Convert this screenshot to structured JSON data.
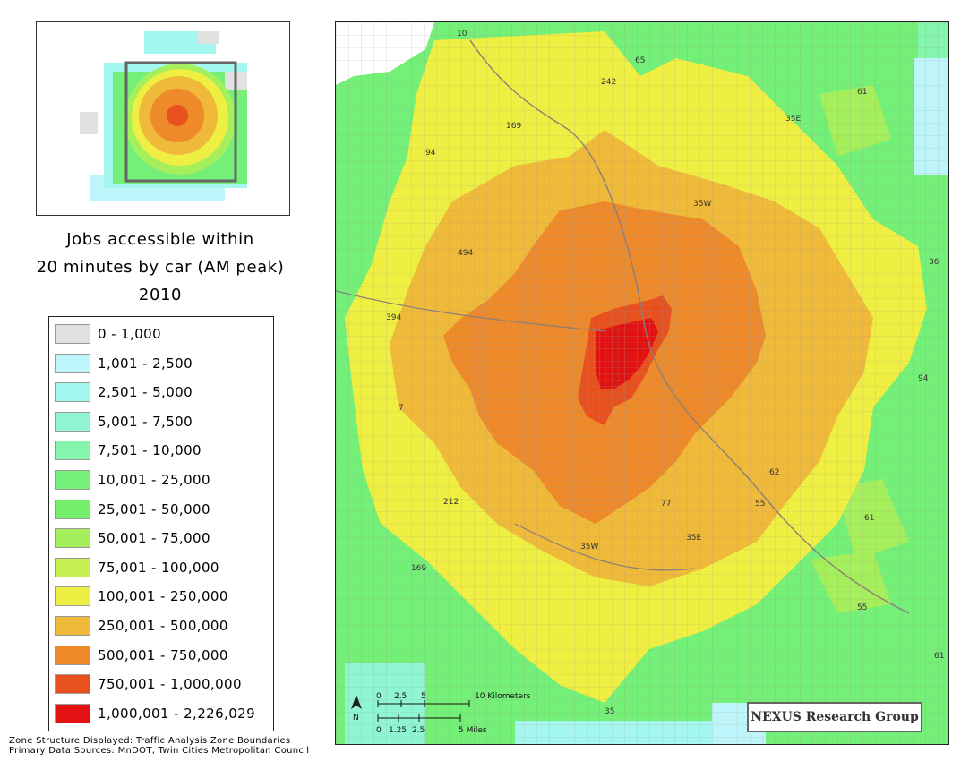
{
  "title": {
    "line1": "Jobs accessible within",
    "line2": "20 minutes by car (AM peak)",
    "line3": "2010"
  },
  "legend": [
    {
      "label": "0 - 1,000",
      "color": "#e1e1e1"
    },
    {
      "label": "1,001 - 2,500",
      "color": "#bef5fa"
    },
    {
      "label": "2,501 - 5,000",
      "color": "#a3f7ef"
    },
    {
      "label": "5,001 - 7,500",
      "color": "#8ff5d2"
    },
    {
      "label": "7,501 - 10,000",
      "color": "#85f5ae"
    },
    {
      "label": "10,001 - 25,000",
      "color": "#74ef78"
    },
    {
      "label": "25,001 - 50,000",
      "color": "#73ef6b"
    },
    {
      "label": "50,001 - 75,000",
      "color": "#a5ef5c"
    },
    {
      "label": "75,001 - 100,000",
      "color": "#c6ef52"
    },
    {
      "label": "100,001 - 250,000",
      "color": "#eeef42"
    },
    {
      "label": "250,001 - 500,000",
      "color": "#efb93a"
    },
    {
      "label": "500,001 - 750,000",
      "color": "#ef8a2a"
    },
    {
      "label": "750,001 - 1,000,000",
      "color": "#e8501e"
    },
    {
      "label": "1,000,001 - 2,226,029",
      "color": "#e31212"
    }
  ],
  "route_labels": [
    "10",
    "65",
    "242",
    "61",
    "169",
    "35E",
    "94",
    "35W",
    "494",
    "36",
    "394",
    "94",
    "7",
    "62",
    "212",
    "77",
    "55",
    "61",
    "35W",
    "35E",
    "169",
    "55",
    "61",
    "35"
  ],
  "scale": {
    "km_ticks": [
      "0",
      "2.5",
      "5",
      "10 Kilometers"
    ],
    "mile_ticks": [
      "0",
      "1.25",
      "2.5",
      "5 Miles"
    ],
    "north": "N"
  },
  "credit": "NEXUS Research Group",
  "footnotes": {
    "line1": "Zone Structure Displayed: Traffic Analysis Zone Boundaries",
    "line2": "Primary Data Sources: MnDOT, Twin Cities Metropolitan Council"
  }
}
